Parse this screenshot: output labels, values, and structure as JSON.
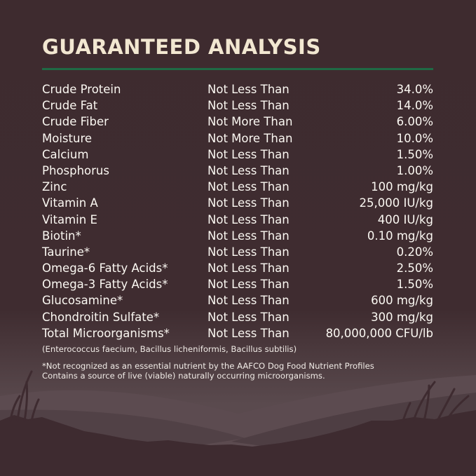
{
  "title": "GUARANTEED ANALYSIS",
  "colors": {
    "background": "#3e2b2f",
    "title": "#f2e7d1",
    "rule": "#1f6a45",
    "text": "#fbf8f2"
  },
  "rows": [
    {
      "nutrient": "Crude Protein",
      "condition": "Not Less Than",
      "value": "34.0%"
    },
    {
      "nutrient": "Crude Fat",
      "condition": "Not Less Than",
      "value": "14.0%"
    },
    {
      "nutrient": "Crude Fiber",
      "condition": "Not More Than",
      "value": "6.00%"
    },
    {
      "nutrient": "Moisture",
      "condition": "Not More Than",
      "value": "10.0%"
    },
    {
      "nutrient": "Calcium",
      "condition": "Not Less Than",
      "value": "1.50%"
    },
    {
      "nutrient": "Phosphorus",
      "condition": "Not Less Than",
      "value": "1.00%"
    },
    {
      "nutrient": "Zinc",
      "condition": "Not Less Than",
      "value": "100 mg/kg"
    },
    {
      "nutrient": "Vitamin A",
      "condition": "Not Less Than",
      "value": "25,000 IU/kg"
    },
    {
      "nutrient": "Vitamin E",
      "condition": "Not Less Than",
      "value": "400 IU/kg"
    },
    {
      "nutrient": "Biotin*",
      "condition": "Not Less Than",
      "value": "0.10 mg/kg"
    },
    {
      "nutrient": "Taurine*",
      "condition": "Not Less Than",
      "value": "0.20%"
    },
    {
      "nutrient": "Omega-6 Fatty Acids*",
      "condition": "Not Less Than",
      "value": "2.50%"
    },
    {
      "nutrient": "Omega-3 Fatty Acids*",
      "condition": "Not Less Than",
      "value": "1.50%"
    },
    {
      "nutrient": "Glucosamine*",
      "condition": "Not Less Than",
      "value": "600 mg/kg"
    },
    {
      "nutrient": "Chondroitin Sulfate*",
      "condition": "Not Less Than",
      "value": "300 mg/kg"
    },
    {
      "nutrient": "Total Microorganisms*",
      "condition": "Not Less Than",
      "value": "80,000,000 CFU/lb"
    }
  ],
  "notes": {
    "strains": "(Enterococcus faecium, Bacillus licheniformis, Bacillus subtilis)",
    "footnote": "*Not recognized as an essential nutrient by the AAFCO Dog Food Nutrient Profiles",
    "live": "Contains a source of live (viable) naturally occurring microorganisms."
  }
}
